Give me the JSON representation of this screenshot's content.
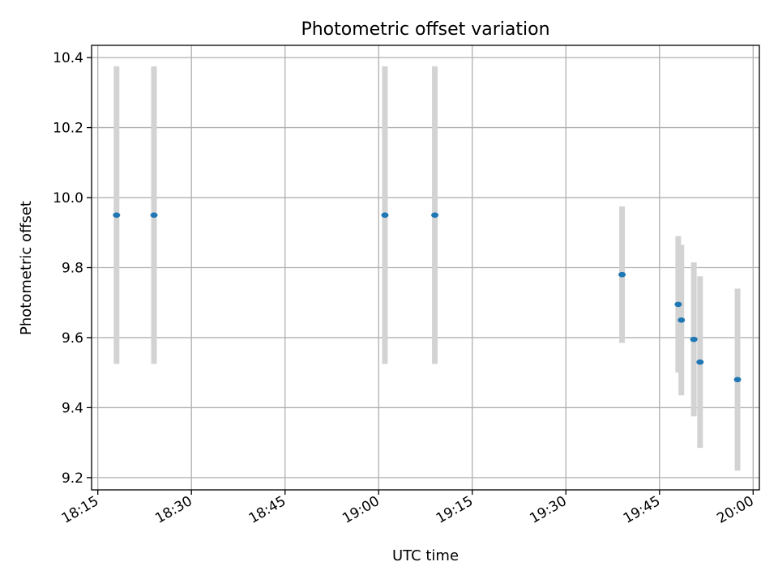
{
  "chart_data": {
    "type": "scatter",
    "title": "Photometric offset variation",
    "xlabel": "UTC time",
    "ylabel": "Photometric offset",
    "x_tick_labels": [
      "18:15",
      "18:30",
      "18:45",
      "19:00",
      "19:15",
      "19:30",
      "19:45",
      "20:00"
    ],
    "y_tick_labels": [
      "9.2",
      "9.4",
      "9.6",
      "9.8",
      "10.0",
      "10.2",
      "10.4"
    ],
    "x_ticks": [
      "18:15",
      "18:30",
      "18:45",
      "19:00",
      "19:15",
      "19:30",
      "19:45",
      "20:00"
    ],
    "y_ticks": [
      9.2,
      9.4,
      9.6,
      9.8,
      10.0,
      10.2,
      10.4
    ],
    "xlim": [
      "18:14",
      "20:01"
    ],
    "ylim": [
      9.165,
      10.435
    ],
    "grid": true,
    "points": [
      {
        "x": "18:18",
        "y": 9.95,
        "err": 0.425
      },
      {
        "x": "18:24",
        "y": 9.95,
        "err": 0.425
      },
      {
        "x": "19:01",
        "y": 9.95,
        "err": 0.425
      },
      {
        "x": "19:09",
        "y": 9.95,
        "err": 0.425
      },
      {
        "x": "19:39",
        "y": 9.78,
        "err": 0.195
      },
      {
        "x": "19:48",
        "y": 9.695,
        "err": 0.195
      },
      {
        "x": "19:48.5",
        "y": 9.65,
        "err": 0.215
      },
      {
        "x": "19:50.5",
        "y": 9.595,
        "err": 0.22
      },
      {
        "x": "19:51.5",
        "y": 9.53,
        "err": 0.245
      },
      {
        "x": "19:57.5",
        "y": 9.48,
        "err": 0.26
      }
    ],
    "colors": {
      "marker": "#1f77b4",
      "errorbar": "#d3d3d3",
      "grid": "#b0b0b0"
    }
  }
}
